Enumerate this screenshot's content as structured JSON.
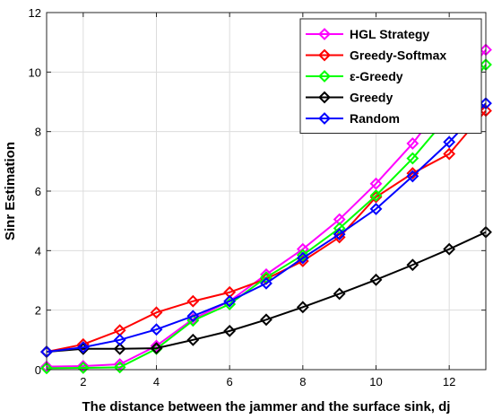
{
  "chart_data": {
    "type": "line",
    "title": "",
    "xlabel": "The distance between the jammer and the surface sink, dj",
    "ylabel": "Sinr Estimation",
    "xlim": [
      1,
      13
    ],
    "ylim": [
      0,
      12
    ],
    "xticks": [
      2,
      4,
      6,
      8,
      10,
      12
    ],
    "yticks": [
      0,
      2,
      4,
      6,
      8,
      10,
      12
    ],
    "grid": true,
    "legend_position": "top-right",
    "x": [
      1,
      2,
      3,
      4,
      5,
      6,
      7,
      8,
      9,
      10,
      11,
      12,
      13
    ],
    "series": [
      {
        "name": "HGL Strategy",
        "color": "#ff00ff",
        "marker": "diamond",
        "values": [
          0.1,
          0.12,
          0.18,
          0.8,
          1.7,
          2.3,
          3.2,
          4.05,
          5.05,
          6.25,
          7.6,
          9.2,
          10.75
        ]
      },
      {
        "name": "Greedy-Softmax",
        "color": "#ff0000",
        "marker": "diamond",
        "values": [
          0.6,
          0.85,
          1.32,
          1.92,
          2.3,
          2.6,
          3.05,
          3.65,
          4.45,
          5.8,
          6.6,
          7.25,
          8.7
        ]
      },
      {
        "name": "ε-Greedy",
        "color": "#00ff00",
        "marker": "diamond",
        "values": [
          0.05,
          0.06,
          0.08,
          0.7,
          1.65,
          2.2,
          3.1,
          3.85,
          4.75,
          5.85,
          7.1,
          8.55,
          10.25
        ]
      },
      {
        "name": "Greedy",
        "color": "#000000",
        "marker": "diamond",
        "values": [
          0.6,
          0.7,
          0.7,
          0.72,
          1.0,
          1.3,
          1.68,
          2.1,
          2.55,
          3.02,
          3.52,
          4.05,
          4.62
        ]
      },
      {
        "name": "Random",
        "color": "#0000ff",
        "marker": "diamond",
        "values": [
          0.6,
          0.75,
          1.0,
          1.35,
          1.8,
          2.3,
          2.9,
          3.75,
          4.55,
          5.4,
          6.5,
          7.65,
          8.95
        ]
      }
    ]
  }
}
